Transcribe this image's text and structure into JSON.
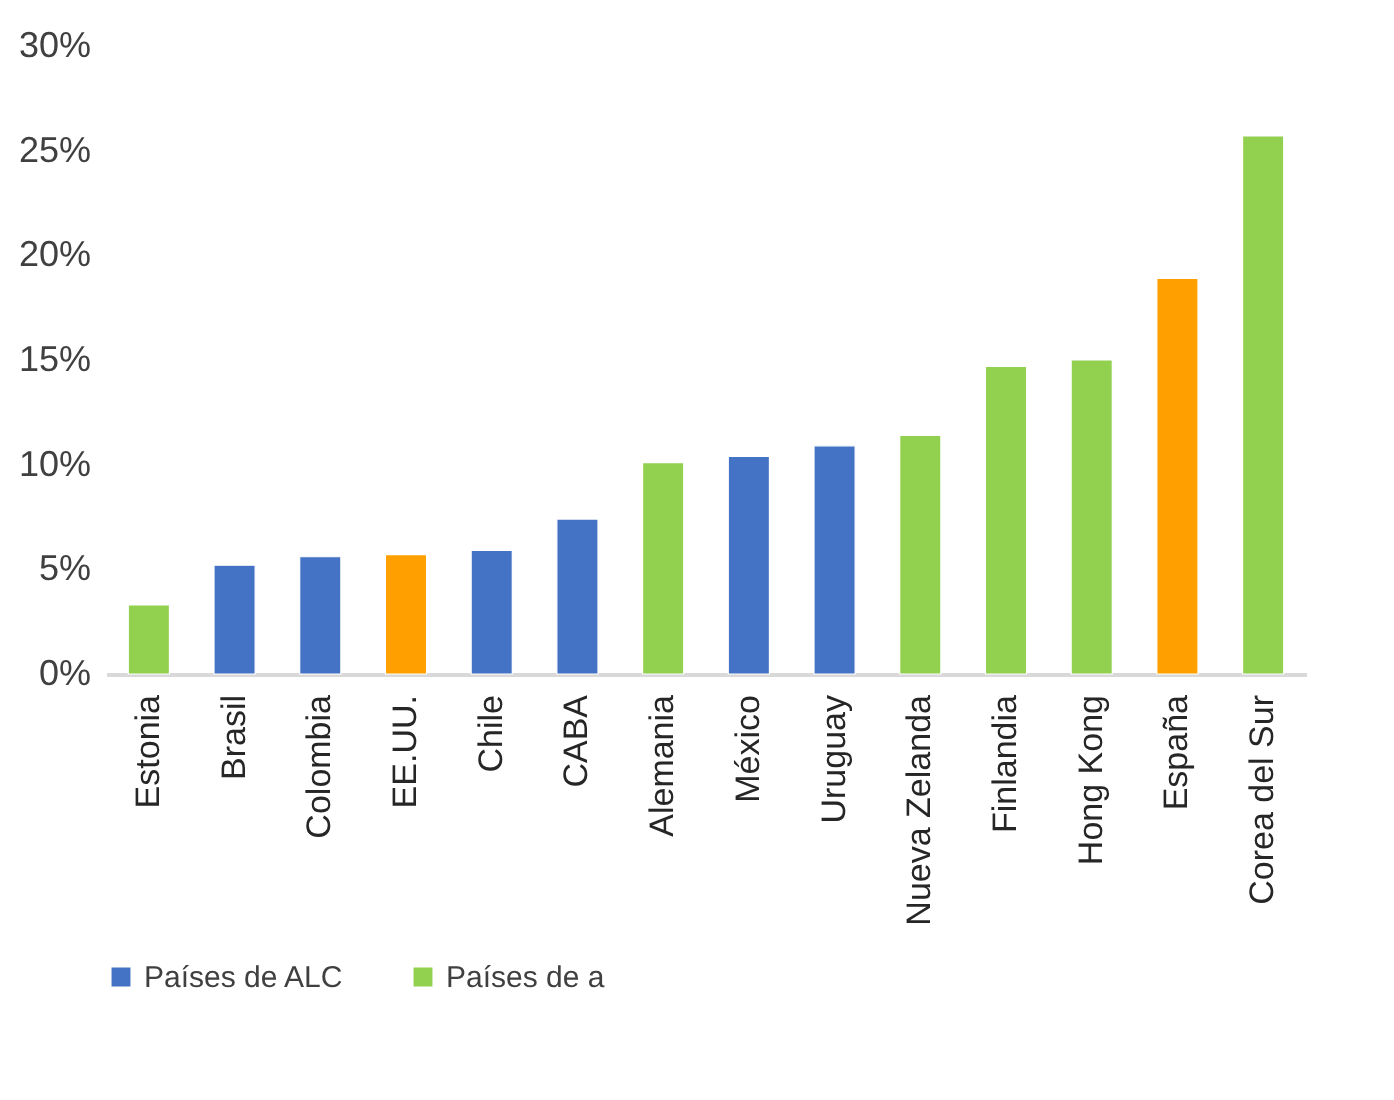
{
  "chart_data": {
    "type": "bar",
    "categories": [
      "Estonia",
      "Brasil",
      "Colombia",
      "EE.UU.",
      "Chile",
      "CABA",
      "Alemania",
      "México",
      "Uruguay",
      "Nueva Zelanda",
      "Finlandia",
      "Hong Kong",
      "España",
      "Corea del Sur"
    ],
    "series": [
      {
        "name": "Países de ALC",
        "color": "#4472c4",
        "values": [
          null,
          5.2,
          5.6,
          null,
          5.9,
          7.4,
          null,
          10.4,
          10.9,
          null,
          null,
          null,
          null,
          null
        ]
      },
      {
        "name": "Países de a",
        "color": "#92d050",
        "values": [
          3.3,
          null,
          null,
          null,
          null,
          null,
          10.1,
          null,
          null,
          11.4,
          14.7,
          15.0,
          null,
          25.7
        ]
      },
      {
        "color": "#ffa000",
        "values": [
          null,
          null,
          null,
          5.7,
          null,
          null,
          null,
          null,
          null,
          null,
          null,
          null,
          18.9,
          null
        ]
      }
    ],
    "ylim": [
      0,
      30
    ],
    "yticks": [
      {
        "value": 0,
        "label": "0%"
      },
      {
        "value": 5,
        "label": "5%"
      },
      {
        "value": 10,
        "label": "10%"
      },
      {
        "value": 15,
        "label": "15%"
      },
      {
        "value": 20,
        "label": "20%"
      },
      {
        "value": 25,
        "label": "25%"
      },
      {
        "value": 30,
        "label": "30%"
      }
    ],
    "grid": false,
    "legend": "bottom"
  }
}
